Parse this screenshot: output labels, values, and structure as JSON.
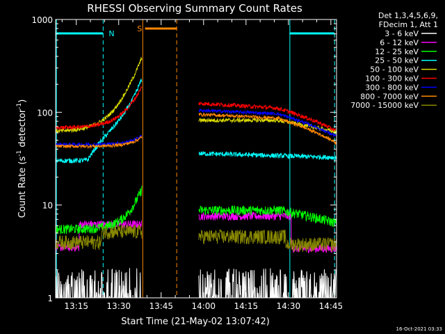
{
  "chart_data": {
    "type": "line",
    "title": "RHESSI Observing Summary Count Rates",
    "xlabel": "Start Time (21-May-02 13:07:42)",
    "ylabel_main": "Count Rate (s",
    "ylabel_sup1": "-1",
    "ylabel_mid": " detector",
    "ylabel_sup2": "-1",
    "ylabel_end": ")",
    "yscale": "log",
    "ylim": [
      1,
      1000
    ],
    "xlim_minutes": [
      787.7,
      887.0
    ],
    "x_ticks": [
      {
        "t": 795,
        "label": "13:15"
      },
      {
        "t": 810,
        "label": "13:30"
      },
      {
        "t": 825,
        "label": "13:45"
      },
      {
        "t": 840,
        "label": "14:00"
      },
      {
        "t": 855,
        "label": "14:15"
      },
      {
        "t": 870,
        "label": "14:30"
      },
      {
        "t": 885,
        "label": "14:45"
      }
    ],
    "y_ticks": [
      {
        "v": 1,
        "label": "1"
      },
      {
        "v": 10,
        "label": "10"
      },
      {
        "v": 100,
        "label": "100"
      },
      {
        "v": 1000,
        "label": "1000"
      }
    ],
    "legend_header": [
      "Det 1,3,4,5,6,9,",
      "FDecim 1, Att 1"
    ],
    "series": [
      {
        "name": "3 - 6 keV",
        "color": "#ffffff"
      },
      {
        "name": "6 - 12 keV",
        "color": "#ff00ff"
      },
      {
        "name": "12 - 25 keV",
        "color": "#00ff00"
      },
      {
        "name": "25 - 50 keV",
        "color": "#00ffff"
      },
      {
        "name": "50 - 100 keV",
        "color": "#dddd00"
      },
      {
        "name": "100 - 300 keV",
        "color": "#ff0000"
      },
      {
        "name": "300 - 800 keV",
        "color": "#0000ff"
      },
      {
        "name": "800 - 7000 keV",
        "color": "#ff8800"
      },
      {
        "name": "7000 - 15000 keV",
        "color": "#888800"
      }
    ],
    "annotations": {
      "night_label": "N",
      "saa_label": "S",
      "night_bars": [
        [
          787.7,
          804.5
        ],
        [
          870.5,
          886.3
        ]
      ],
      "night_edges": [
        788.0,
        804.5,
        870.5,
        886.3
      ],
      "saa_bar": [
        819.3,
        830.5
      ],
      "saa_edges": [
        818.5,
        830.5
      ]
    },
    "segments": [
      [
        787.7,
        818.3
      ],
      [
        838.3,
        887.0
      ]
    ],
    "flare_peak_minute": 817.8
  },
  "timestamp": "16-Oct-2021 03:33"
}
